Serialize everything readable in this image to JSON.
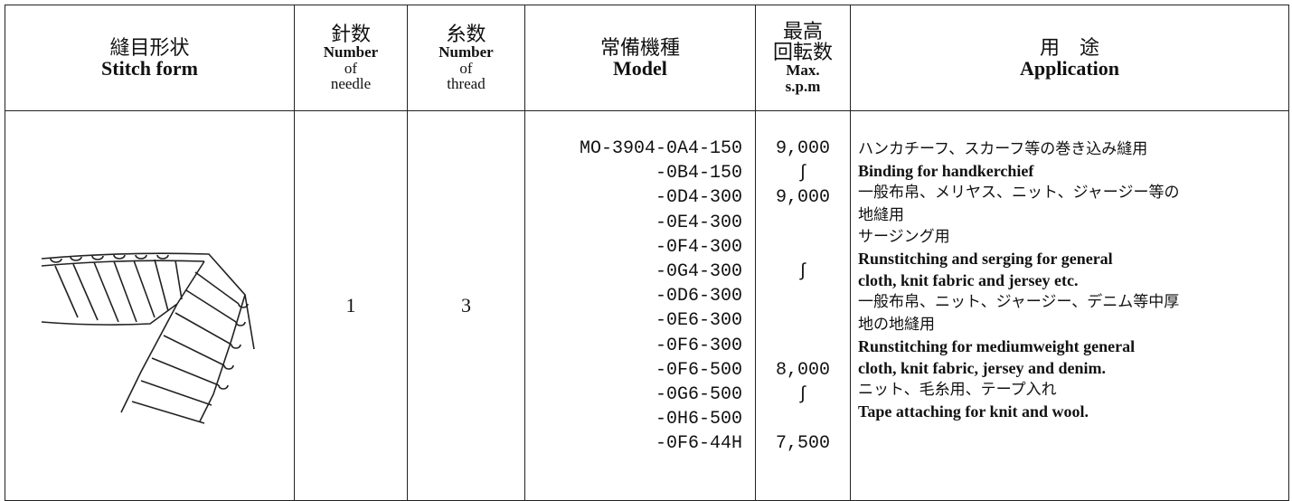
{
  "header": {
    "stitch_form": [
      "縫目形状",
      "Stitch form"
    ],
    "needle": [
      "針数",
      "Number",
      "of",
      "needle"
    ],
    "thread": [
      "糸数",
      "Number",
      "of",
      "thread"
    ],
    "model": [
      "常備機種",
      "Model"
    ],
    "speed": [
      "最高",
      "回転数",
      "Max.",
      "s.p.m"
    ],
    "application": [
      "用　途",
      "Application"
    ]
  },
  "row": {
    "needle": "1",
    "thread": "3",
    "models": [
      "MO-3904-0A4-150",
      "-0B4-150",
      "-0D4-300",
      "-0E4-300",
      "-0F4-300",
      "-0G4-300",
      "-0D6-300",
      "-0E6-300",
      "-0F6-300",
      "-0F6-500",
      "-0G6-500",
      "-0H6-500",
      "-0F6-44H"
    ],
    "speeds": [
      "9,000",
      "∫",
      "9,000",
      null,
      null,
      "∫",
      null,
      null,
      null,
      "8,000",
      "∫",
      null,
      "7,500"
    ],
    "application": [
      {
        "text": "ハンカチーフ、スカーフ等の巻き込み縫用",
        "bold": false
      },
      {
        "text": "Binding for handkerchief",
        "bold": true
      },
      {
        "text": "一般布帛、メリヤス、ニット、ジャージー等の",
        "bold": false
      },
      {
        "text": "地縫用",
        "bold": false
      },
      {
        "text": "サージング用",
        "bold": false
      },
      {
        "text": "Runstitching and serging for general",
        "bold": true
      },
      {
        "text": "cloth, knit fabric and jersey etc.",
        "bold": true
      },
      {
        "text": "一般布帛、ニット、ジャージー、デニム等中厚",
        "bold": false
      },
      {
        "text": "地の地縫用",
        "bold": false
      },
      {
        "text": "Runstitching for mediumweight general",
        "bold": true
      },
      {
        "text": "cloth, knit fabric, jersey and denim.",
        "bold": true
      },
      {
        "text": "ニット、毛糸用、テープ入れ",
        "bold": false
      },
      {
        "text": "Tape attaching for knit and wool.",
        "bold": true
      }
    ]
  }
}
